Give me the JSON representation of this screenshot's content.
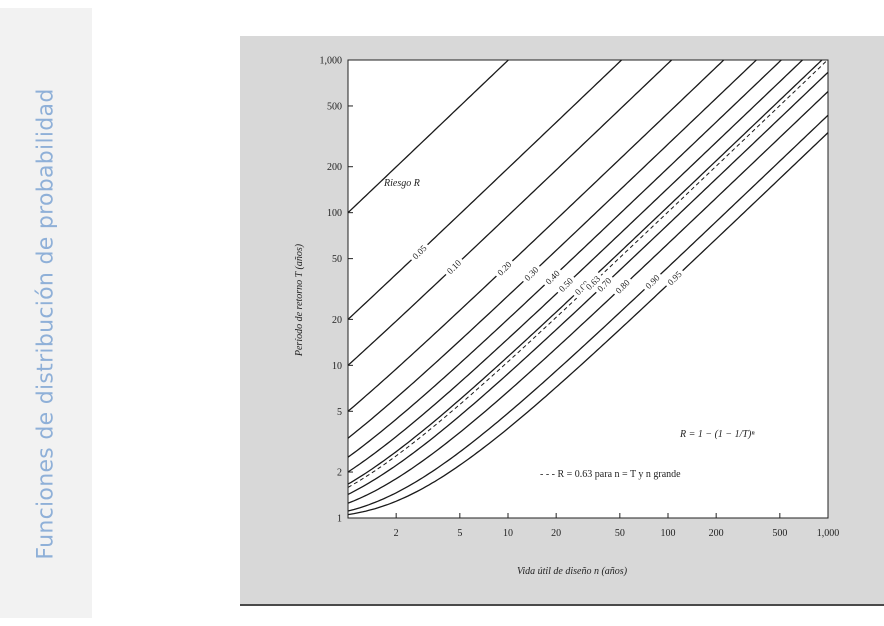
{
  "sidebar": {
    "title": "Funciones de distribución de probabilidad"
  },
  "colors": {
    "sidebar_text": "#8fb0d8",
    "panel": "#d8d8d8",
    "plot_bg": "#ffffff",
    "curve": "#1a1a1a"
  },
  "chart_data": {
    "type": "line",
    "xscale": "log",
    "yscale": "log",
    "xlim": [
      1,
      1000
    ],
    "ylim": [
      1,
      1000
    ],
    "grid": false,
    "xlabel": "Vida útil de diseño n (años)",
    "ylabel": "Período de retorno T (años)",
    "xticks": [
      "2",
      "5",
      "10",
      "20",
      "50",
      "100",
      "200",
      "500",
      "1,000"
    ],
    "yticks": [
      "1",
      "2",
      "5",
      "10",
      "20",
      "50",
      "100",
      "200",
      "500",
      "1,000"
    ],
    "legend_label": "Riesgo R",
    "risk_labels": [
      "0.05",
      "0.10",
      "0.20",
      "0.30",
      "0.40",
      "0.50",
      "0.60",
      "0.63",
      "0.70",
      "0.80",
      "0.90",
      "0.95"
    ],
    "series": [
      {
        "risk": 0.01,
        "dashed": false
      },
      {
        "risk": 0.05,
        "dashed": false
      },
      {
        "risk": 0.1,
        "dashed": false
      },
      {
        "risk": 0.2,
        "dashed": false
      },
      {
        "risk": 0.3,
        "dashed": false
      },
      {
        "risk": 0.4,
        "dashed": false
      },
      {
        "risk": 0.5,
        "dashed": false
      },
      {
        "risk": 0.6,
        "dashed": false
      },
      {
        "risk": 0.63,
        "dashed": true
      },
      {
        "risk": 0.7,
        "dashed": false
      },
      {
        "risk": 0.8,
        "dashed": false
      },
      {
        "risk": 0.9,
        "dashed": false
      },
      {
        "risk": 0.95,
        "dashed": false
      }
    ],
    "formula": "R = 1 − (1 − 1/T)ⁿ",
    "note": "- - - R = 0.63 para n = T y n grande"
  }
}
